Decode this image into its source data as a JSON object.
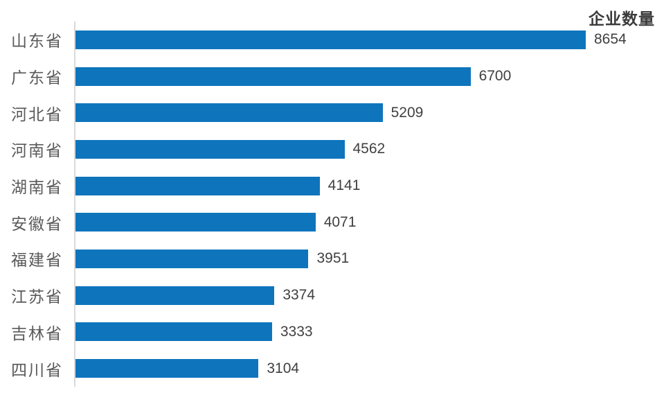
{
  "chart_data": {
    "type": "bar",
    "orientation": "horizontal",
    "title": "企业数量",
    "categories": [
      "山东省",
      "广东省",
      "河北省",
      "河南省",
      "湖南省",
      "安徽省",
      "福建省",
      "江苏省",
      "吉林省",
      "四川省"
    ],
    "values": [
      8654,
      6700,
      5209,
      4562,
      4141,
      4071,
      3951,
      3374,
      3333,
      3104
    ],
    "xlim": [
      0,
      8654
    ],
    "data_labels": true,
    "grid": false,
    "legend_position": "top-right",
    "colors": {
      "bar": "#0e75bd",
      "axis_line": "#d9d9d9",
      "category_label": "#595959",
      "value_label": "#404040",
      "title": "#3b3b3b",
      "background": "#ffffff"
    }
  }
}
